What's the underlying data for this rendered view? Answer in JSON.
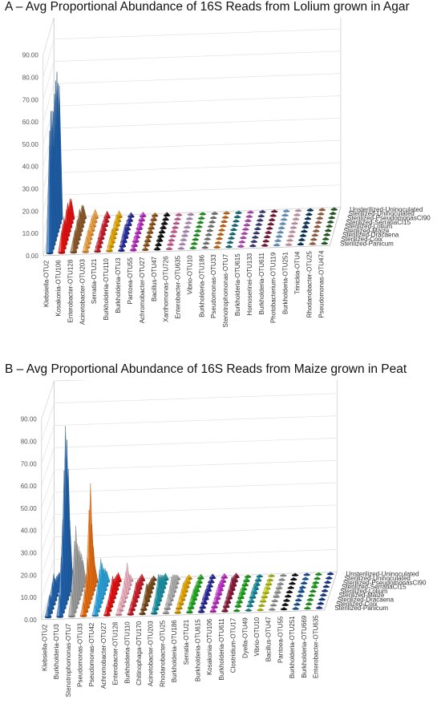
{
  "chart_data": [
    {
      "type": "bar",
      "title": "A – Avg Proportional Abundance of 16S Reads from Lolium grown in Agar",
      "zlim": [
        0,
        90
      ],
      "zticks": [
        "0.00",
        "10.00",
        "20.00",
        "30.00",
        "40.00",
        "50.00",
        "60.00",
        "70.00",
        "80.00",
        "90.00"
      ],
      "categories": [
        "Klebsiella-OTU2",
        "Kosakonia-OTU106",
        "Enterobacter-OTU128",
        "Acinetobacter-OTU203",
        "Serratia-OTU21",
        "Burkholderia-OTU110",
        "Burkholderia-OTU3",
        "Pantoea-OTU55",
        "Achromobacter-OTU27",
        "Bacillus-OTU47",
        "Xanthomonas-OTU726",
        "Enterobacter-OTU635",
        "Vibrio-OTU10",
        "Burkholderia-OTU186",
        "Pseudomonas-OTU33",
        "Stenotrophomonas-OTU7",
        "Burkholderia-OTU615",
        "Homoserinei-OTU133",
        "Burkholderia-OTU611",
        "Photobacterium-OTU119",
        "Burkholderia-OTU251",
        "Trinickia-OTU4",
        "Rhodanobacter-OTU25",
        "Pseudomonas-OTU474"
      ],
      "treatments": [
        "Sterilized-Panicum",
        "Sterilized-Coix",
        "Sterilized-Dracaena",
        "Sterilized-Maize",
        "Sterilized-Lolium",
        "Sterilized-SerratiaCI15",
        "Sterilized-PseudomonasCI90",
        "Sterilized-Uninoculated",
        "Unsterilized-Uninoculated"
      ],
      "colors": [
        "#1f5fa8",
        "#e01010",
        "#8a5a2b",
        "#e89b3c",
        "#c81f2a",
        "#e0a300",
        "#2b2f9e",
        "#c030c8",
        "#9a5a1a",
        "#111111",
        "#e36fa8",
        "#c9a8d8",
        "#22aa22",
        "#888888",
        "#e07a20",
        "#1a7f8a",
        "#cc55cc",
        "#444488",
        "#8a1c3c",
        "#7fb3e0",
        "#e8b8c8",
        "#0a3a6a",
        "#b07050",
        "#2a6a2a"
      ],
      "values": [
        [
          55,
          62,
          60,
          58,
          64,
          68,
          70,
          63,
          60
        ],
        [
          10,
          11,
          12,
          9,
          12,
          13,
          10,
          11,
          9
        ],
        [
          7,
          8,
          7,
          9,
          8,
          10,
          7,
          8,
          6
        ],
        [
          4,
          5,
          6,
          4,
          5,
          6,
          5,
          4,
          4
        ],
        [
          3,
          4,
          3,
          4,
          5,
          3,
          4,
          3,
          3
        ],
        [
          3,
          5,
          6,
          4,
          3,
          4,
          5,
          3,
          3
        ],
        [
          2,
          3,
          4,
          6,
          3,
          2,
          3,
          2,
          2
        ],
        [
          2,
          2,
          3,
          2,
          2,
          3,
          2,
          2,
          2
        ],
        [
          1.5,
          2,
          2,
          1.5,
          2,
          2,
          1.5,
          2,
          1.5
        ],
        [
          1.5,
          1.5,
          2,
          1.5,
          1.5,
          1.5,
          1.5,
          1.5,
          1.5
        ],
        [
          1,
          1.5,
          1,
          1,
          1.5,
          1,
          1,
          1,
          1
        ],
        [
          1,
          1,
          1,
          1.5,
          1,
          1,
          1,
          1,
          1
        ],
        [
          1,
          1,
          1,
          1,
          1,
          1,
          1,
          1,
          1
        ],
        [
          1,
          1,
          1,
          1,
          1,
          1,
          1,
          1,
          1
        ],
        [
          1,
          1,
          1,
          1,
          1,
          1,
          1,
          1,
          1
        ],
        [
          1,
          1,
          1,
          1,
          1,
          1,
          1,
          1,
          1
        ],
        [
          1,
          1,
          1,
          1,
          1,
          1,
          1,
          1,
          1
        ],
        [
          1,
          1,
          1,
          1,
          1,
          1,
          1,
          1,
          1
        ],
        [
          1,
          1,
          1,
          1,
          1,
          1,
          1,
          1,
          1
        ],
        [
          1,
          1,
          1,
          1,
          1,
          1,
          1,
          1,
          1
        ],
        [
          1,
          1,
          1,
          1,
          1,
          1,
          1,
          1,
          1
        ],
        [
          1,
          1,
          1,
          1,
          1.5,
          1,
          1,
          1,
          1
        ],
        [
          1,
          1,
          1,
          1,
          1,
          1,
          1,
          1,
          1
        ],
        [
          1,
          1,
          1,
          1,
          1,
          1,
          1,
          1,
          1
        ]
      ]
    },
    {
      "type": "bar",
      "title": "B – Avg Proportional Abundance of 16S Reads from Maize grown in Peat",
      "zlim": [
        0,
        90
      ],
      "zticks": [
        "0.00",
        "10.00",
        "20.00",
        "30.00",
        "40.00",
        "50.00",
        "60.00",
        "70.00",
        "80.00",
        "90.00"
      ],
      "categories": [
        "Klebsiella-OTU2",
        "Burkholderia-OTU3",
        "Stenotrophomonas-OTU7",
        "Pseudomonas-OTU33",
        "Pseudomonas-OTU42",
        "Achromobacter-OTU27",
        "Enterobacter-OTU128",
        "Burkholderia-OTU110",
        "Chitinophaga-OTU170",
        "Acinetobacter-OTU203",
        "Rhodanobacter-OTU25",
        "Burkholderia-OTU186",
        "Serratia-OTU21",
        "Burkholderia-OTU615",
        "Kosakonia-OTU106",
        "Burkholderia-OTU611",
        "Clostridium-OTU17",
        "Dyella-OTU49",
        "Vibrio-OTU10",
        "Bacillus-OTU47",
        "Pantoea-OTU55",
        "Burkholderia-OTU251",
        "Burkholderia-OTU669",
        "Enterobacter-OTU635"
      ],
      "treatments": [
        "Sterilized-Panicum",
        "Sterilized-Coix",
        "Sterilized-Dracaena",
        "Sterilized-Maize",
        "Sterilized-Lolium",
        "Sterilized-SerratiaCI15",
        "Sterilized-PseudomonasCI90",
        "Sterilized-Uninoculated",
        "Unsterilized-Uninoculated"
      ],
      "colors": [
        "#1f5fa8",
        "#1f5fa8",
        "#999999",
        "#e06a10",
        "#2a9fd6",
        "#e01010",
        "#e8a8b8",
        "#c81f2a",
        "#7a4a1a",
        "#1a8fa0",
        "#aaaaaa",
        "#e0a300",
        "#22aa22",
        "#2a2a9e",
        "#c030c8",
        "#8a1c3c",
        "#22aa22",
        "#1a8fa0",
        "#c8d020",
        "#aaaaaa",
        "#111111",
        "#1f5fa8",
        "#22aa22",
        "#1a3a9e"
      ],
      "values": [
        [
          5,
          8,
          6,
          10,
          12,
          8,
          7,
          6,
          5
        ],
        [
          10,
          25,
          40,
          60,
          78,
          70,
          55,
          30,
          8
        ],
        [
          12,
          20,
          30,
          35,
          25,
          22,
          18,
          15,
          10
        ],
        [
          6,
          10,
          15,
          20,
          40,
          50,
          30,
          18,
          8
        ],
        [
          5,
          8,
          12,
          15,
          18,
          14,
          10,
          8,
          5
        ],
        [
          4,
          5,
          6,
          8,
          10,
          7,
          6,
          5,
          4
        ],
        [
          3,
          4,
          5,
          6,
          8,
          10,
          12,
          5,
          3
        ],
        [
          3,
          4,
          5,
          5,
          7,
          6,
          5,
          4,
          3
        ],
        [
          2,
          3,
          5,
          8,
          6,
          5,
          4,
          3,
          2
        ],
        [
          3,
          5,
          8,
          12,
          10,
          8,
          6,
          4,
          3
        ],
        [
          2,
          3,
          5,
          7,
          9,
          8,
          6,
          4,
          2
        ],
        [
          2,
          3,
          4,
          5,
          6,
          5,
          4,
          3,
          2
        ],
        [
          2,
          3,
          4,
          5,
          4,
          3,
          3,
          2,
          2
        ],
        [
          2,
          2,
          3,
          4,
          3,
          3,
          2,
          2,
          2
        ],
        [
          2,
          2,
          3,
          3,
          5,
          4,
          3,
          2,
          2
        ],
        [
          2,
          3,
          3,
          4,
          5,
          6,
          4,
          3,
          2
        ],
        [
          1,
          2,
          2,
          3,
          3,
          2,
          2,
          2,
          1
        ],
        [
          1,
          2,
          2,
          3,
          4,
          3,
          2,
          2,
          1
        ],
        [
          1,
          1,
          2,
          2,
          3,
          2,
          2,
          1,
          1
        ],
        [
          1,
          1,
          1,
          2,
          2,
          2,
          1,
          1,
          1
        ],
        [
          1,
          1,
          1,
          1,
          1,
          1,
          1,
          1,
          1
        ],
        [
          1,
          1,
          1,
          1,
          2,
          1,
          1,
          1,
          1
        ],
        [
          1,
          1,
          1,
          1,
          1,
          2,
          1,
          1,
          1
        ],
        [
          1,
          1,
          1,
          1,
          1,
          1,
          1,
          1,
          1
        ]
      ]
    }
  ]
}
